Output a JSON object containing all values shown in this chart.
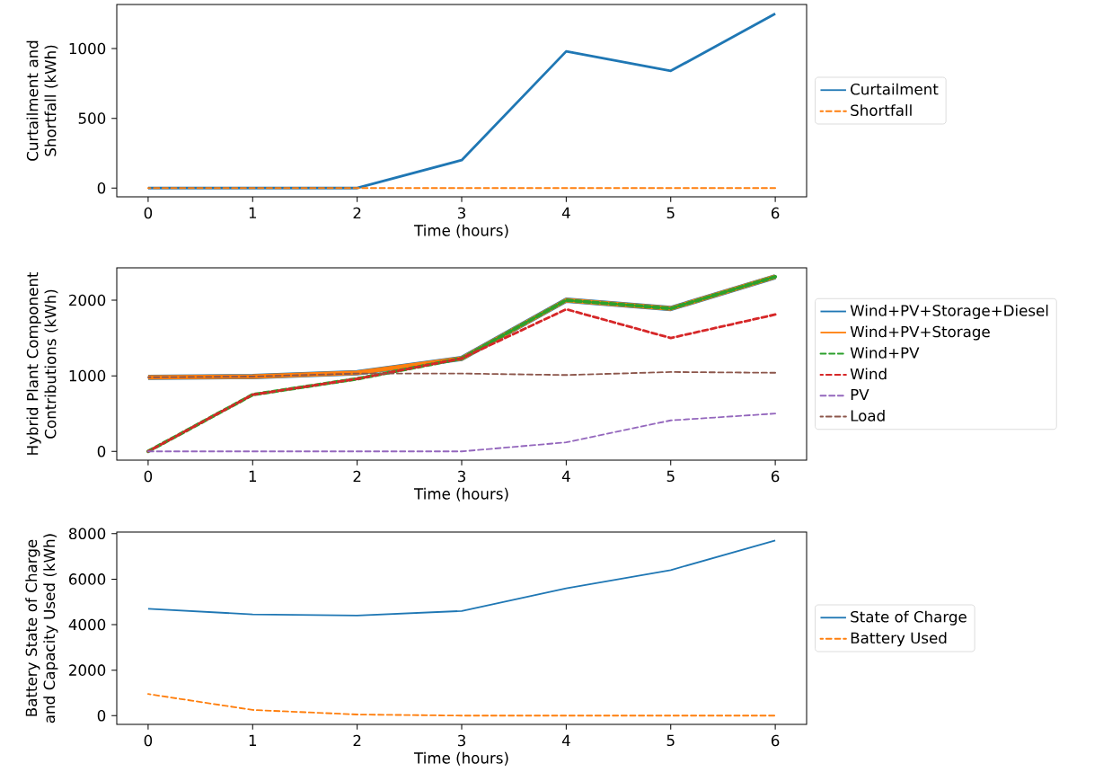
{
  "chart_data": [
    {
      "type": "line",
      "xlabel": "Time (hours)",
      "ylabel": "Curtailment and Shortfall (kWh)",
      "x": [
        0,
        1,
        2,
        3,
        4,
        5,
        6
      ],
      "xlim": [
        -0.3,
        6.3
      ],
      "ylim": [
        -63,
        1316
      ],
      "xticks": [
        0,
        1,
        2,
        3,
        4,
        5,
        6
      ],
      "yticks": [
        0,
        500,
        1000
      ],
      "legend": "right",
      "series": [
        {
          "name": "Curtailment",
          "color": "#1f77b4",
          "line_style": "solid",
          "values": [
            0,
            0,
            0,
            200,
            980,
            840,
            1250
          ]
        },
        {
          "name": "Shortfall",
          "color": "#ff7f0e",
          "line_style": "dashed",
          "values": [
            0,
            0,
            0,
            0,
            0,
            0,
            0
          ]
        }
      ]
    },
    {
      "type": "line",
      "xlabel": "Time (hours)",
      "ylabel": "Hybrid Plant Component Contributions (kWh)",
      "x": [
        0,
        1,
        2,
        3,
        4,
        5,
        6
      ],
      "xlim": [
        -0.3,
        6.3
      ],
      "ylim": [
        -116,
        2428
      ],
      "xticks": [
        0,
        1,
        2,
        3,
        4,
        5,
        6
      ],
      "yticks": [
        0,
        1000,
        2000
      ],
      "legend": "right",
      "series": [
        {
          "name": "Wind+PV+Storage+Diesel",
          "color": "#1f77b4",
          "line_style": "solid",
          "values": [
            980,
            990,
            1040,
            1230,
            2000,
            1890,
            2310
          ]
        },
        {
          "name": "Wind+PV+Storage",
          "color": "#ff7f0e",
          "line_style": "solid",
          "values": [
            980,
            990,
            1040,
            1230,
            2000,
            1890,
            2310
          ]
        },
        {
          "name": "Wind+PV",
          "color": "#2ca02c",
          "line_style": "dashed",
          "values": [
            0,
            750,
            960,
            1230,
            2000,
            1890,
            2310
          ]
        },
        {
          "name": "Wind",
          "color": "#d62728",
          "line_style": "dashed",
          "values": [
            0,
            750,
            960,
            1230,
            1880,
            1500,
            1810
          ]
        },
        {
          "name": "PV",
          "color": "#9467bd",
          "line_style": "dashed",
          "values": [
            0,
            0,
            0,
            0,
            120,
            410,
            500
          ]
        },
        {
          "name": "Load",
          "color": "#8c564b",
          "line_style": "dashed",
          "values": [
            980,
            990,
            1030,
            1030,
            1010,
            1050,
            1040
          ]
        }
      ]
    },
    {
      "type": "line",
      "xlabel": "Time (hours)",
      "ylabel": "Battery State of Charge and Capacity Used (kWh)",
      "x": [
        0,
        1,
        2,
        3,
        4,
        5,
        6
      ],
      "xlim": [
        -0.3,
        6.3
      ],
      "ylim": [
        -385,
        8071
      ],
      "xticks": [
        0,
        1,
        2,
        3,
        4,
        5,
        6
      ],
      "yticks": [
        0,
        2000,
        4000,
        6000,
        8000
      ],
      "legend": "right",
      "series": [
        {
          "name": "State of Charge",
          "color": "#1f77b4",
          "line_style": "solid",
          "values": [
            4700,
            4450,
            4400,
            4600,
            5600,
            6400,
            7700
          ]
        },
        {
          "name": "Battery Used",
          "color": "#ff7f0e",
          "line_style": "dashed",
          "values": [
            950,
            250,
            50,
            0,
            0,
            0,
            0
          ]
        }
      ]
    }
  ]
}
